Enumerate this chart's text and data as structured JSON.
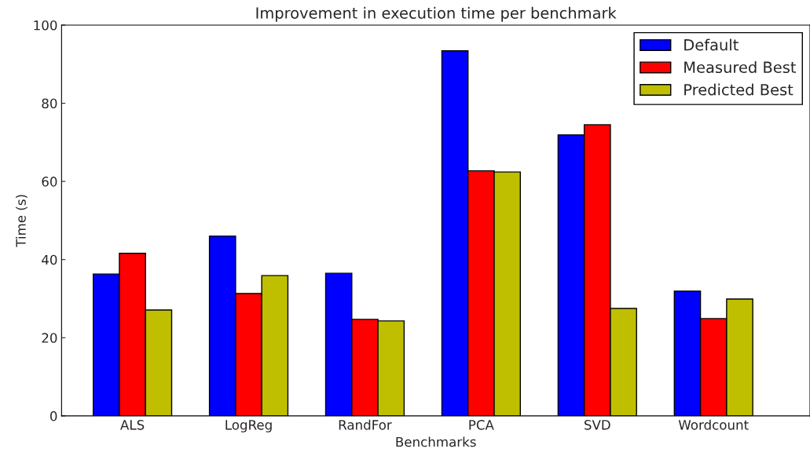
{
  "chart_data": {
    "type": "bar",
    "title": "Improvement in execution time per benchmark",
    "xlabel": "Benchmarks",
    "ylabel": "Time (s)",
    "categories": [
      "ALS",
      "LogReg",
      "RandFor",
      "PCA",
      "SVD",
      "Wordcount"
    ],
    "series": [
      {
        "name": "Default",
        "color": "#0000ff",
        "values": [
          36.3,
          46.0,
          36.5,
          93.4,
          71.9,
          31.9
        ]
      },
      {
        "name": "Measured Best",
        "color": "#ff0000",
        "values": [
          41.6,
          31.3,
          24.7,
          62.7,
          74.5,
          24.9
        ]
      },
      {
        "name": "Predicted Best",
        "color": "#bfbf00",
        "values": [
          27.1,
          35.9,
          24.3,
          62.4,
          27.5,
          29.9
        ]
      }
    ],
    "ylim": [
      0,
      100
    ],
    "yticks": [
      0,
      20,
      40,
      60,
      80,
      100
    ],
    "grid": false,
    "legend": "top right"
  }
}
